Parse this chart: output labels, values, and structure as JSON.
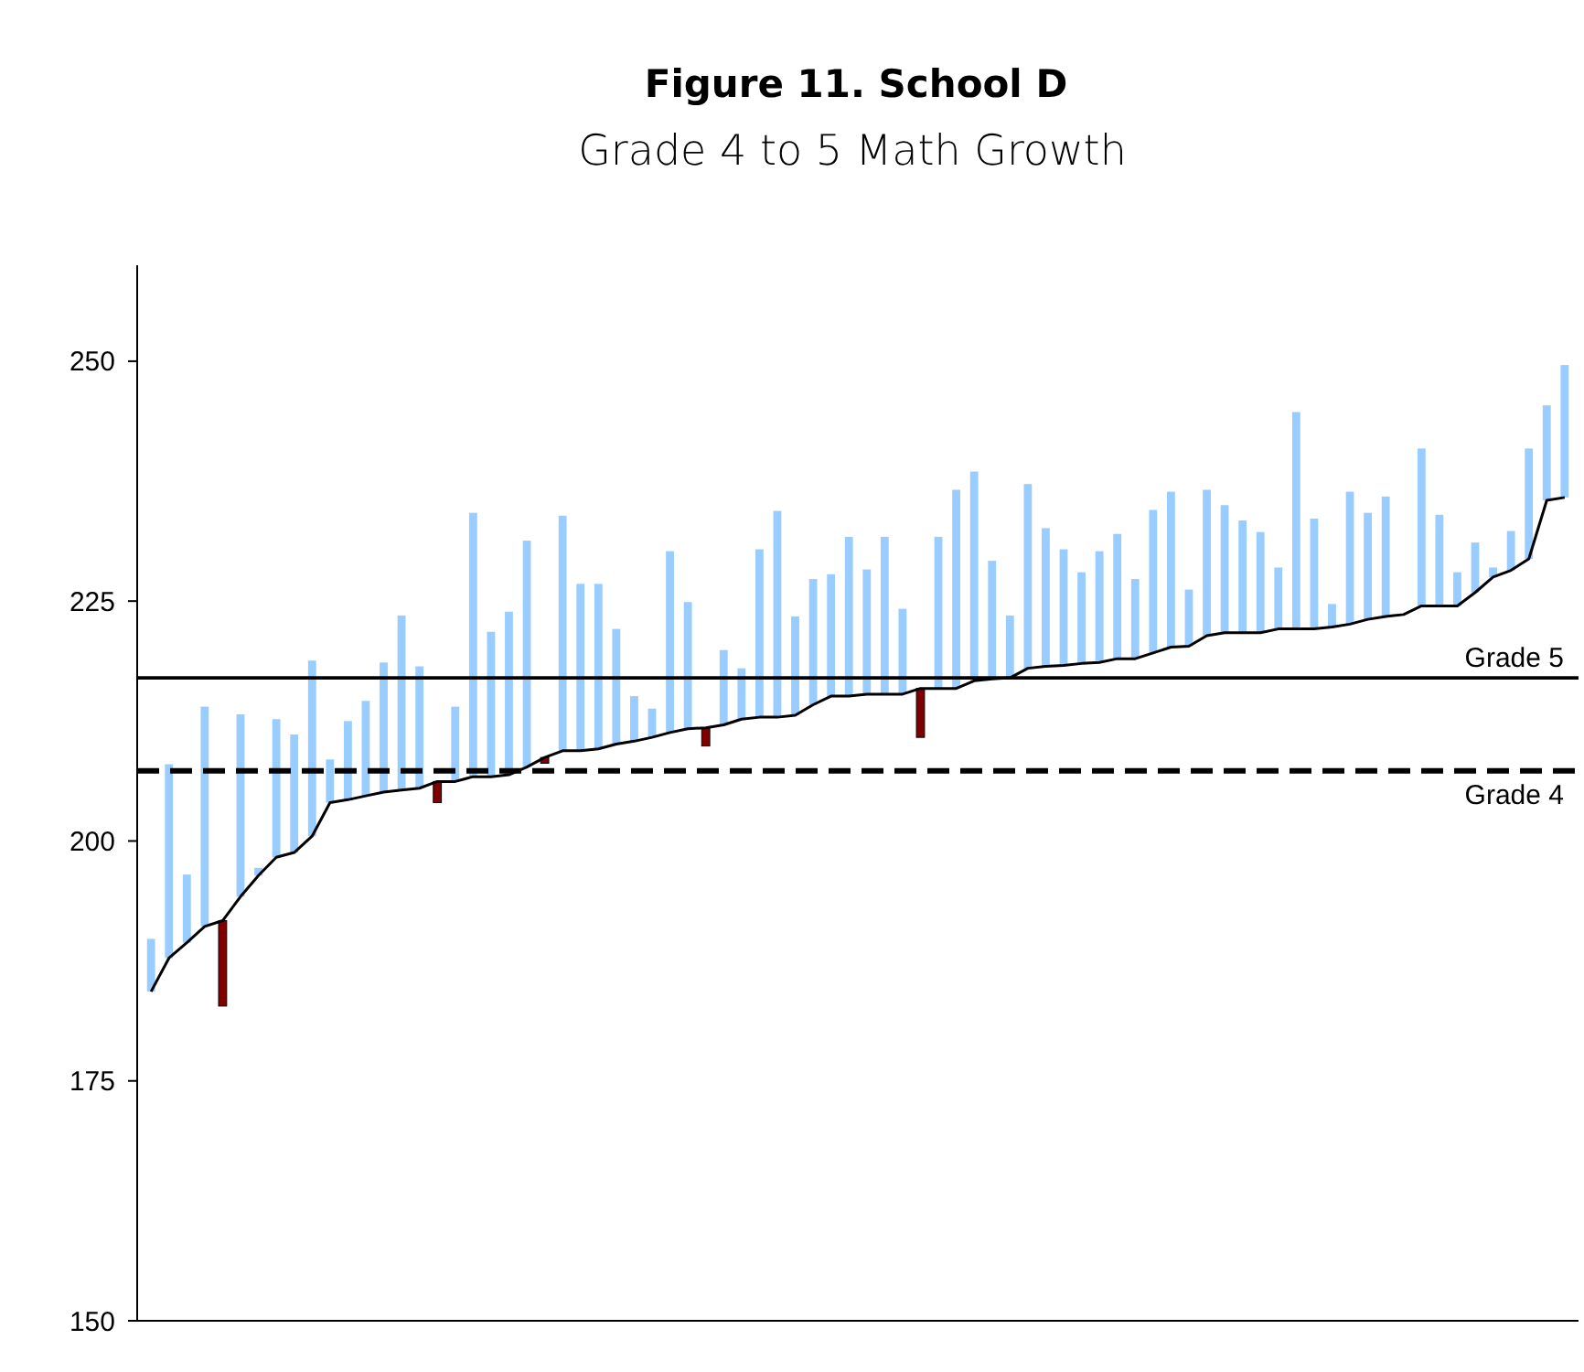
{
  "chart_data": {
    "type": "bar",
    "title": "Figure 11.  School D",
    "subtitle": "Grade 4 to 5 Math Growth",
    "categories": [
      null,
      null,
      null,
      null,
      null,
      null,
      null,
      null,
      null,
      null,
      null,
      null,
      null,
      null,
      null,
      null,
      null,
      null,
      null,
      null,
      null,
      null,
      null,
      null,
      null,
      null,
      null,
      null,
      null,
      null,
      null,
      null,
      null,
      null,
      null,
      null,
      null,
      null,
      null,
      null,
      null,
      null,
      null,
      null,
      null,
      null,
      null,
      null,
      null,
      null,
      null,
      null,
      null,
      null,
      null,
      null,
      null,
      null,
      null,
      null,
      null,
      null,
      null,
      null,
      null,
      null,
      null,
      null,
      null,
      null,
      null,
      null,
      null,
      null,
      null,
      null,
      null,
      null,
      null,
      null
    ],
    "ylim": [
      150,
      260
    ],
    "yticks": [
      150,
      175,
      200,
      225,
      250
    ],
    "series": [
      {
        "base": [
          184.3,
          187.8,
          189.4,
          191.1,
          191.7,
          194.2,
          196.4,
          198.3,
          198.8,
          200.5,
          204.0,
          204.3,
          204.7,
          205.1,
          205.3,
          205.5,
          206.2,
          206.2,
          206.7,
          206.7,
          206.9,
          207.7,
          208.7,
          209.4,
          209.4,
          209.6,
          210.1,
          210.4,
          210.8,
          211.3,
          211.7,
          211.8,
          212.1,
          212.7,
          212.9,
          212.9,
          213.1,
          214.2,
          215.1,
          215.1,
          215.3,
          215.3,
          215.3,
          215.9,
          215.9,
          215.9,
          216.7,
          216.9,
          217.0,
          218.0,
          218.2,
          218.3,
          218.5,
          218.6,
          219.0,
          219.0,
          219.6,
          220.2,
          220.3,
          221.4,
          221.7,
          221.7,
          221.7,
          222.1,
          222.1,
          222.1,
          222.3,
          222.6,
          223.1,
          223.4,
          null,
          224.5,
          224.5,
          224.5,
          225.9,
          227.5,
          228.2,
          229.4,
          235.5,
          235.8
        ],
        "values": [
          5.5,
          20.2,
          7.1,
          22.9,
          -8.9,
          19.0,
          0.8,
          14.4,
          12.3,
          18.3,
          4.5,
          8.2,
          9.9,
          13.5,
          18.2,
          12.7,
          -2.2,
          7.8,
          27.5,
          15.1,
          17.0,
          23.6,
          -0.6,
          24.5,
          17.4,
          17.2,
          12.0,
          4.7,
          3.0,
          18.9,
          13.2,
          -1.9,
          7.8,
          5.3,
          17.5,
          21.5,
          10.3,
          13.1,
          12.7,
          16.6,
          13.0,
          16.4,
          8.9,
          -5.1,
          15.8,
          20.7,
          21.8,
          12.3,
          6.5,
          19.2,
          14.4,
          12.1,
          9.5,
          11.6,
          13.0,
          8.3,
          14.9,
          16.2,
          5.9,
          15.2,
          13.3,
          11.7,
          10.5,
          6.4,
          22.6,
          11.5,
          2.4,
          13.8,
          11.1,
          12.5,
          null,
          16.4,
          9.5,
          3.5,
          5.2,
          1.0,
          4.1,
          11.5,
          9.9,
          13.8
        ],
        "colors": [
          "#99ccff",
          "#99ccff",
          "#99ccff",
          "#99ccff",
          "#800000",
          "#99ccff",
          "#99ccff",
          "#99ccff",
          "#99ccff",
          "#99ccff",
          "#99ccff",
          "#99ccff",
          "#99ccff",
          "#99ccff",
          "#99ccff",
          "#99ccff",
          "#800000",
          "#99ccff",
          "#99ccff",
          "#99ccff",
          "#99ccff",
          "#99ccff",
          "#800000",
          "#99ccff",
          "#99ccff",
          "#99ccff",
          "#99ccff",
          "#99ccff",
          "#99ccff",
          "#99ccff",
          "#99ccff",
          "#800000",
          "#99ccff",
          "#99ccff",
          "#99ccff",
          "#99ccff",
          "#99ccff",
          "#99ccff",
          "#99ccff",
          "#99ccff",
          "#99ccff",
          "#99ccff",
          "#99ccff",
          "#800000",
          "#99ccff",
          "#99ccff",
          "#99ccff",
          "#99ccff",
          "#99ccff",
          "#99ccff",
          "#99ccff",
          "#99ccff",
          "#99ccff",
          "#99ccff",
          "#99ccff",
          "#99ccff",
          "#99ccff",
          "#99ccff",
          "#99ccff",
          "#99ccff",
          "#99ccff",
          "#99ccff",
          "#99ccff",
          "#99ccff",
          "#99ccff",
          "#99ccff",
          "#99ccff",
          "#99ccff",
          "#99ccff",
          "#99ccff",
          null,
          "#99ccff",
          "#99ccff",
          "#99ccff",
          "#99ccff",
          "#99ccff",
          "#99ccff",
          "#99ccff",
          "#99ccff",
          "#99ccff"
        ]
      },
      {
        "type": "line",
        "color": "#000000",
        "marker": "none",
        "line_style": "solid",
        "values": [
          184.3,
          187.8,
          189.4,
          191.1,
          191.7,
          194.2,
          196.4,
          198.3,
          198.8,
          200.5,
          204.0,
          204.3,
          204.7,
          205.1,
          205.3,
          205.5,
          206.2,
          206.2,
          206.7,
          206.7,
          206.9,
          207.7,
          208.7,
          209.4,
          209.4,
          209.6,
          210.1,
          210.4,
          210.8,
          211.3,
          211.7,
          211.8,
          212.1,
          212.7,
          212.9,
          212.9,
          213.1,
          214.2,
          215.1,
          215.1,
          215.3,
          215.3,
          215.3,
          215.9,
          215.9,
          215.9,
          216.7,
          216.9,
          217.0,
          218.0,
          218.2,
          218.3,
          218.5,
          218.6,
          219.0,
          219.0,
          219.6,
          220.2,
          220.3,
          221.4,
          221.7,
          221.7,
          221.7,
          222.1,
          222.1,
          222.1,
          222.3,
          222.6,
          223.1,
          223.4,
          223.6,
          224.5,
          224.5,
          224.5,
          225.9,
          227.5,
          228.2,
          229.4,
          235.5,
          235.8
        ]
      }
    ],
    "ref_lines": [
      {
        "axis": "y",
        "value": 217.0,
        "label": "Grade 5",
        "line_style": "solid",
        "color": "#000000"
      },
      {
        "axis": "y",
        "value": 207.3,
        "label": "Grade 4",
        "line_style": "dashed",
        "color": "#000000"
      }
    ]
  }
}
